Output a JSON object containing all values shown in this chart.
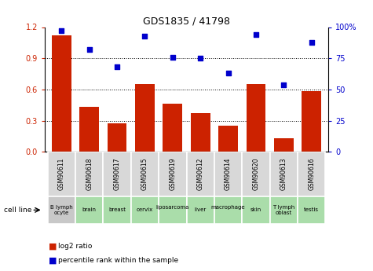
{
  "title": "GDS1835 / 41798",
  "gsm_labels": [
    "GSM90611",
    "GSM90618",
    "GSM90617",
    "GSM90615",
    "GSM90619",
    "GSM90612",
    "GSM90614",
    "GSM90620",
    "GSM90613",
    "GSM90616"
  ],
  "cell_labels": [
    "B lymph\nocyte",
    "brain",
    "breast",
    "cervix",
    "liposarcoma\n",
    "liver",
    "macrophage\n",
    "skin",
    "T lymph\noblast",
    "testis"
  ],
  "cell_bg_colors": [
    "#c8c8c8",
    "#aaddaa",
    "#aaddaa",
    "#aaddaa",
    "#aaddaa",
    "#aaddaa",
    "#aaddaa",
    "#aaddaa",
    "#aaddaa",
    "#aaddaa"
  ],
  "gsm_bg_color": "#d8d8d8",
  "log2_ratio": [
    1.12,
    0.43,
    0.27,
    0.65,
    0.46,
    0.37,
    0.25,
    0.65,
    0.13,
    0.58
  ],
  "percentile_rank": [
    97,
    82,
    68,
    93,
    76,
    75,
    63,
    94,
    54,
    88
  ],
  "bar_color": "#cc2200",
  "dot_color": "#0000cc",
  "left_ylim": [
    0,
    1.2
  ],
  "right_ylim": [
    0,
    100
  ],
  "left_yticks": [
    0,
    0.3,
    0.6,
    0.9,
    1.2
  ],
  "right_yticks": [
    0,
    25,
    50,
    75,
    100
  ],
  "right_yticklabels": [
    "0",
    "25",
    "50",
    "75",
    "100%"
  ],
  "grid_lines": [
    0.3,
    0.6,
    0.9
  ]
}
